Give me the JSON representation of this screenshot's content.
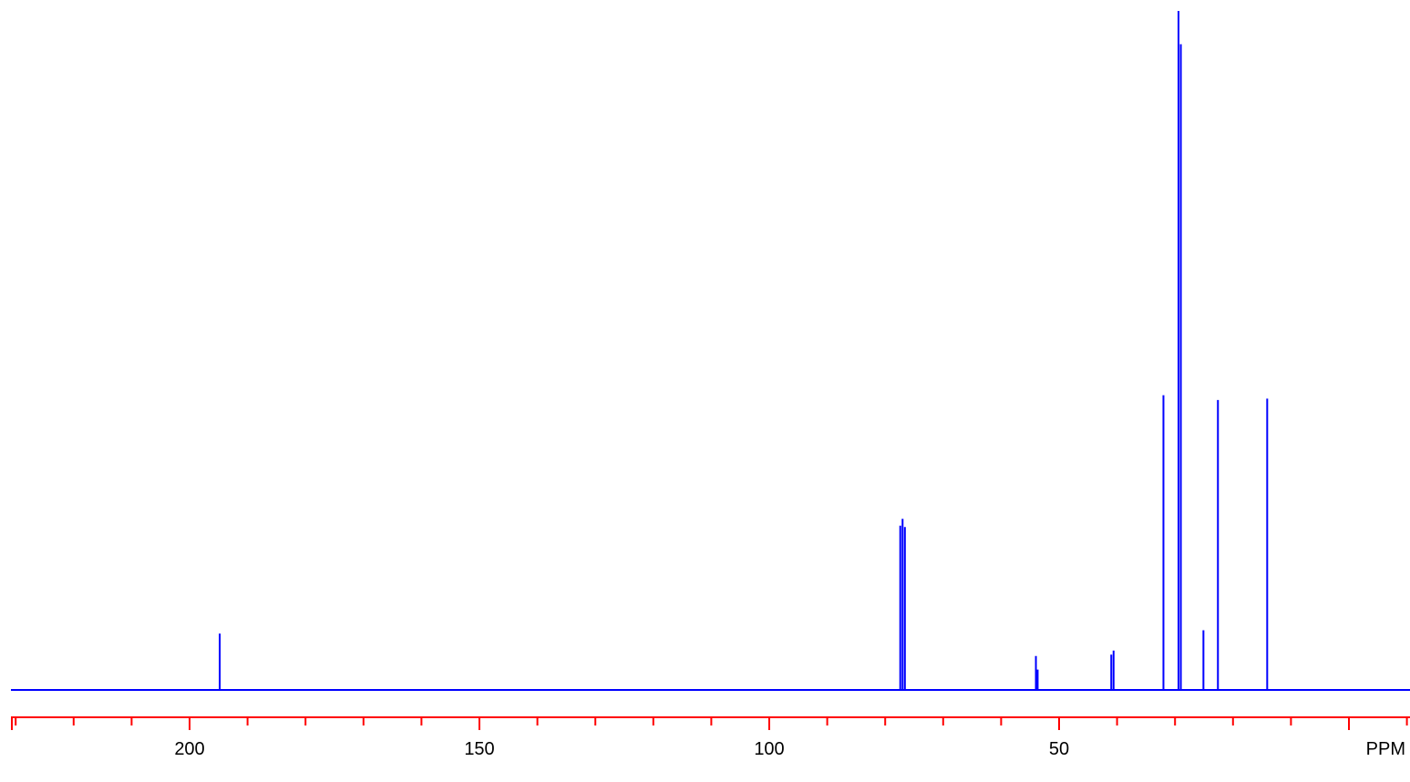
{
  "chart_data": {
    "type": "line",
    "xlabel": "PPM",
    "xlim": [
      230,
      -10
    ],
    "x_reversed": true,
    "ylim": [
      0,
      1.0
    ],
    "grid": false,
    "legend": "none",
    "major_ticks": [
      200,
      150,
      100,
      50
    ],
    "tick_labels": [
      "200",
      "150",
      "100",
      "50"
    ],
    "minor_tick_step": 10,
    "series": [
      {
        "peaks": [
          {
            "x": 194.8,
            "y": 0.083
          },
          {
            "x": 77.4,
            "y": 0.242
          },
          {
            "x": 77.0,
            "y": 0.252
          },
          {
            "x": 76.6,
            "y": 0.24
          },
          {
            "x": 54.0,
            "y": 0.05
          },
          {
            "x": 53.7,
            "y": 0.03
          },
          {
            "x": 41.0,
            "y": 0.052
          },
          {
            "x": 40.6,
            "y": 0.058
          },
          {
            "x": 32.0,
            "y": 0.434
          },
          {
            "x": 29.4,
            "y": 1.0
          },
          {
            "x": 29.0,
            "y": 0.951
          },
          {
            "x": 25.1,
            "y": 0.088
          },
          {
            "x": 22.6,
            "y": 0.427
          },
          {
            "x": 14.1,
            "y": 0.429
          }
        ]
      }
    ]
  },
  "colors": {
    "spectrum": "#0000ff",
    "axis": "#ff0000",
    "text": "#000000"
  }
}
